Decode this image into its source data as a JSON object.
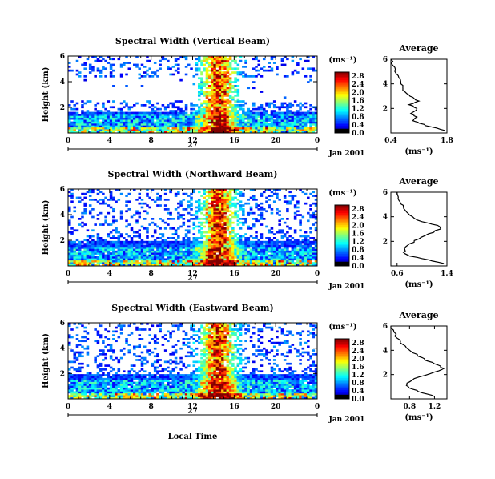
{
  "figure": {
    "shared_xlabel": "Local Time",
    "colorbar_unit": "(ms⁻¹)",
    "average_title": "Average",
    "average_xlabel": "(ms⁻¹)",
    "date_label": "Jan 2001",
    "day_label": "27"
  },
  "chart_data": [
    {
      "type": "heatmap",
      "title": "Spectral Width (Vertical Beam)",
      "xlabel": "",
      "ylabel": "Height (km)",
      "x_ticks": [
        "0",
        "4",
        "8",
        "12",
        "16",
        "20",
        "0"
      ],
      "y_ticks": [
        "2",
        "4",
        "6"
      ],
      "xlim": [
        0,
        24
      ],
      "ylim": [
        0,
        6
      ],
      "colorbar": {
        "ticks": [
          "0.0",
          "0.4",
          "0.8",
          "1.2",
          "1.6",
          "2.0",
          "2.4",
          "2.8"
        ],
        "range": [
          0,
          3
        ]
      },
      "average_profile": {
        "title": "Average",
        "x_ticks": [
          "0.4",
          "1.8"
        ],
        "xlim": [
          0.4,
          1.8
        ],
        "y_ticks": [
          "2",
          "4",
          "6"
        ],
        "height_km": [
          0.2,
          0.5,
          0.8,
          1.0,
          1.3,
          1.6,
          2.0,
          2.3,
          2.6,
          2.9,
          3.2,
          3.6,
          4.0,
          4.5,
          5.0,
          5.5,
          6.0
        ],
        "width_ms": [
          1.75,
          1.4,
          1.1,
          0.95,
          1.05,
          0.9,
          1.05,
          0.85,
          1.1,
          0.95,
          0.8,
          0.7,
          0.65,
          0.6,
          0.5,
          0.45,
          0.4
        ]
      }
    },
    {
      "type": "heatmap",
      "title": "Spectral Width (Northward Beam)",
      "xlabel": "",
      "ylabel": "Height (km)",
      "x_ticks": [
        "0",
        "4",
        "8",
        "12",
        "16",
        "20",
        "0"
      ],
      "y_ticks": [
        "2",
        "4",
        "6"
      ],
      "xlim": [
        0,
        24
      ],
      "ylim": [
        0,
        6
      ],
      "colorbar": {
        "ticks": [
          "0.0",
          "0.4",
          "0.8",
          "1.2",
          "1.6",
          "2.0",
          "2.4",
          "2.8"
        ],
        "range": [
          0,
          3
        ]
      },
      "average_profile": {
        "title": "Average",
        "x_ticks": [
          "0.6",
          "1.4"
        ],
        "xlim": [
          0.5,
          1.4
        ],
        "y_ticks": [
          "2",
          "4",
          "6"
        ],
        "height_km": [
          0.2,
          0.5,
          0.8,
          1.1,
          1.4,
          1.8,
          2.2,
          2.6,
          3.0,
          3.3,
          3.6,
          4.0,
          4.4,
          4.8,
          5.2,
          5.6,
          6.0
        ],
        "width_ms": [
          1.35,
          1.1,
          0.8,
          0.7,
          0.72,
          0.8,
          0.95,
          1.1,
          1.3,
          1.25,
          1.0,
          0.85,
          0.75,
          0.7,
          0.65,
          0.62,
          0.6
        ]
      }
    },
    {
      "type": "heatmap",
      "title": "Spectral Width (Eastward Beam)",
      "xlabel": "Local Time",
      "ylabel": "Height (km)",
      "x_ticks": [
        "0",
        "4",
        "8",
        "12",
        "16",
        "20",
        "0"
      ],
      "y_ticks": [
        "2",
        "4",
        "6"
      ],
      "xlim": [
        0,
        24
      ],
      "ylim": [
        0,
        6
      ],
      "colorbar": {
        "ticks": [
          "0.0",
          "0.4",
          "0.8",
          "1.2",
          "1.6",
          "2.0",
          "2.4",
          "2.8"
        ],
        "range": [
          0,
          3
        ]
      },
      "average_profile": {
        "title": "Average",
        "x_ticks": [
          "0.8",
          "1.2"
        ],
        "xlim": [
          0.5,
          1.4
        ],
        "y_ticks": [
          "2",
          "4",
          "6"
        ],
        "height_km": [
          0.2,
          0.5,
          0.8,
          1.1,
          1.4,
          1.8,
          2.2,
          2.5,
          2.8,
          3.1,
          3.4,
          3.8,
          4.2,
          4.6,
          5.0,
          5.5,
          6.0
        ],
        "width_ms": [
          1.2,
          1.0,
          0.85,
          0.75,
          0.8,
          0.95,
          1.2,
          1.35,
          1.25,
          1.1,
          1.0,
          0.85,
          0.75,
          0.65,
          0.6,
          0.55,
          0.5
        ]
      }
    }
  ]
}
